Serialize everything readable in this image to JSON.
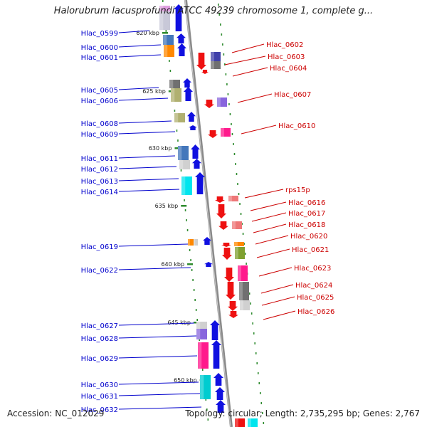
{
  "title": "Halorubrum lacusprofundi ATCC 49239 chromosome 1, complete g...",
  "footer": {
    "accession": "Accession: NC_012029",
    "summary": "Topology: circular; Length: 2,735,295 bp; Genes: 2,767"
  },
  "colors": {
    "backbone": "#8a8a8a",
    "tick": "#2e8b2e",
    "left_label": "#0000cc",
    "right_label": "#cc0000"
  },
  "ticks": [
    "620 kbp",
    "625 kbp",
    "630 kbp",
    "635 kbp",
    "640 kbp",
    "645 kbp",
    "650 kbp"
  ],
  "left_genes": [
    "Hlac_0599",
    "Hlac_0600",
    "Hlac_0601",
    "Hlac_0605",
    "Hlac_0606",
    "Hlac_0608",
    "Hlac_0609",
    "Hlac_0611",
    "Hlac_0612",
    "Hlac_0613",
    "Hlac_0614",
    "Hlac_0619",
    "Hlac_0622",
    "Hlac_0627",
    "Hlac_0628",
    "Hlac_0629",
    "Hlac_0630",
    "Hlac_0631",
    "Hlac_0632"
  ],
  "right_genes": [
    "Hlac_0602",
    "Hlac_0603",
    "Hlac_0604",
    "Hlac_0607",
    "Hlac_0610",
    "rps15p",
    "Hlac_0616",
    "Hlac_0617",
    "Hlac_0618",
    "Hlac_0620",
    "Hlac_0621",
    "Hlac_0623",
    "Hlac_0624",
    "Hlac_0625",
    "Hlac_0626"
  ]
}
